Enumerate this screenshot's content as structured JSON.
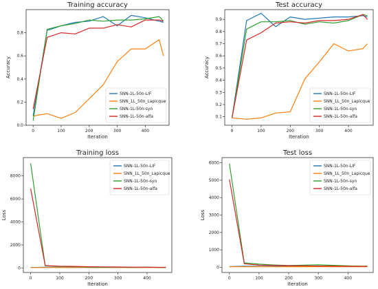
{
  "chart_data": [
    {
      "type": "line",
      "title": "Training accuracy",
      "xlabel": "Iteration",
      "ylabel": "Accuracy",
      "xlim": [
        -25,
        485
      ],
      "ylim": [
        0,
        1.0
      ],
      "xticks": [
        0,
        100,
        200,
        300,
        400
      ],
      "yticks": [
        0.0,
        0.2,
        0.4,
        0.6,
        0.8
      ],
      "ytick_decimals": 1,
      "legend_position": "lower-right",
      "x": [
        0,
        50,
        100,
        150,
        200,
        250,
        300,
        350,
        400,
        450,
        465
      ],
      "series": [
        {
          "name": "SNN-1L-50n-LIF",
          "color": "#1f77b4",
          "values": [
            0.08,
            0.82,
            0.86,
            0.89,
            0.9,
            0.94,
            0.86,
            0.95,
            0.93,
            0.9,
            0.89
          ]
        },
        {
          "name": "SNN_1L_50n_Lapicque",
          "color": "#ff7f0e",
          "values": [
            0.08,
            0.1,
            0.06,
            0.11,
            0.23,
            0.35,
            0.55,
            0.66,
            0.66,
            0.74,
            0.6
          ]
        },
        {
          "name": "SNN-1L-50n-syn",
          "color": "#2ca02c",
          "values": [
            0.04,
            0.83,
            0.86,
            0.88,
            0.91,
            0.9,
            0.91,
            0.91,
            0.92,
            0.94,
            0.9
          ]
        },
        {
          "name": "SNN-1L-50n-alfa",
          "color": "#d62728",
          "values": [
            0.14,
            0.76,
            0.8,
            0.79,
            0.84,
            0.84,
            0.87,
            0.85,
            0.91,
            0.91,
            0.9
          ]
        }
      ]
    },
    {
      "type": "line",
      "title": "Test accuracy",
      "xlabel": "Iteration",
      "ylabel": "Accuracy",
      "xlim": [
        -25,
        485
      ],
      "ylim": [
        0.03,
        0.98
      ],
      "xticks": [
        0,
        100,
        200,
        300,
        400
      ],
      "yticks": [
        0.1,
        0.2,
        0.3,
        0.4,
        0.5,
        0.6,
        0.7,
        0.8,
        0.9
      ],
      "ytick_decimals": 1,
      "legend_position": "lower-right",
      "x": [
        0,
        50,
        100,
        150,
        200,
        250,
        300,
        350,
        400,
        450,
        465
      ],
      "series": [
        {
          "name": "SNN-1L-50n-LIF",
          "color": "#1f77b4",
          "values": [
            0.09,
            0.89,
            0.95,
            0.84,
            0.92,
            0.9,
            0.91,
            0.92,
            0.92,
            0.93,
            0.92
          ]
        },
        {
          "name": "SNN_1L_50n_Lapicque",
          "color": "#ff7f0e",
          "values": [
            0.09,
            0.08,
            0.09,
            0.13,
            0.14,
            0.41,
            0.55,
            0.7,
            0.64,
            0.66,
            0.7
          ]
        },
        {
          "name": "SNN-1L-50n-syn",
          "color": "#2ca02c",
          "values": [
            0.09,
            0.82,
            0.88,
            0.88,
            0.89,
            0.86,
            0.88,
            0.87,
            0.89,
            0.94,
            0.93
          ]
        },
        {
          "name": "SNN-1L-50n-alfa",
          "color": "#d62728",
          "values": [
            0.09,
            0.73,
            0.79,
            0.87,
            0.88,
            0.87,
            0.89,
            0.89,
            0.9,
            0.94,
            0.9
          ]
        }
      ]
    },
    {
      "type": "line",
      "title": "Training loss",
      "xlabel": "Iteration",
      "ylabel": "Loss",
      "xlim": [
        -25,
        485
      ],
      "ylim": [
        -400,
        9600
      ],
      "xticks": [
        0,
        100,
        200,
        300,
        400
      ],
      "yticks": [
        0,
        2000,
        4000,
        6000,
        8000
      ],
      "ytick_decimals": 0,
      "legend_position": "top-right",
      "x": [
        0,
        50,
        100,
        150,
        200,
        250,
        300,
        350,
        400,
        450,
        465
      ],
      "series": [
        {
          "name": "SNN-1L-50n-LIF",
          "color": "#1f77b4",
          "values": [
            40,
            60,
            50,
            55,
            45,
            50,
            48,
            45,
            50,
            45,
            40
          ]
        },
        {
          "name": "SNN_1L_50n_Lapicque",
          "color": "#ff7f0e",
          "values": [
            30,
            30,
            30,
            30,
            30,
            30,
            30,
            30,
            30,
            30,
            30
          ]
        },
        {
          "name": "SNN-1L-50n-syn",
          "color": "#2ca02c",
          "values": [
            9100,
            180,
            120,
            110,
            60,
            50,
            60,
            40,
            70,
            30,
            40
          ]
        },
        {
          "name": "SNN-1L-50n-alfa",
          "color": "#d62728",
          "values": [
            6900,
            200,
            150,
            130,
            100,
            90,
            80,
            70,
            60,
            50,
            50
          ]
        }
      ]
    },
    {
      "type": "line",
      "title": "Test loss",
      "xlabel": "Iteration",
      "ylabel": "Loss",
      "xlim": [
        -25,
        485
      ],
      "ylim": [
        -300,
        6300
      ],
      "xticks": [
        0,
        100,
        200,
        300,
        400
      ],
      "yticks": [
        0,
        1000,
        2000,
        3000,
        4000,
        5000,
        6000
      ],
      "ytick_decimals": 0,
      "legend_position": "top-right",
      "x": [
        0,
        50,
        100,
        150,
        200,
        250,
        300,
        350,
        400,
        450,
        465
      ],
      "series": [
        {
          "name": "SNN-1L-50n-LIF",
          "color": "#1f77b4",
          "values": [
            40,
            60,
            50,
            60,
            55,
            60,
            50,
            50,
            55,
            45,
            40
          ]
        },
        {
          "name": "SNN_1L_50n_Lapicque",
          "color": "#ff7f0e",
          "values": [
            30,
            30,
            30,
            30,
            30,
            30,
            30,
            30,
            30,
            30,
            30
          ]
        },
        {
          "name": "SNN-1L-50n-syn",
          "color": "#2ca02c",
          "values": [
            5950,
            250,
            180,
            130,
            100,
            120,
            140,
            110,
            80,
            60,
            70
          ]
        },
        {
          "name": "SNN-1L-50n-alfa",
          "color": "#d62728",
          "values": [
            5050,
            200,
            120,
            110,
            90,
            80,
            70,
            70,
            60,
            50,
            50
          ]
        }
      ]
    }
  ]
}
